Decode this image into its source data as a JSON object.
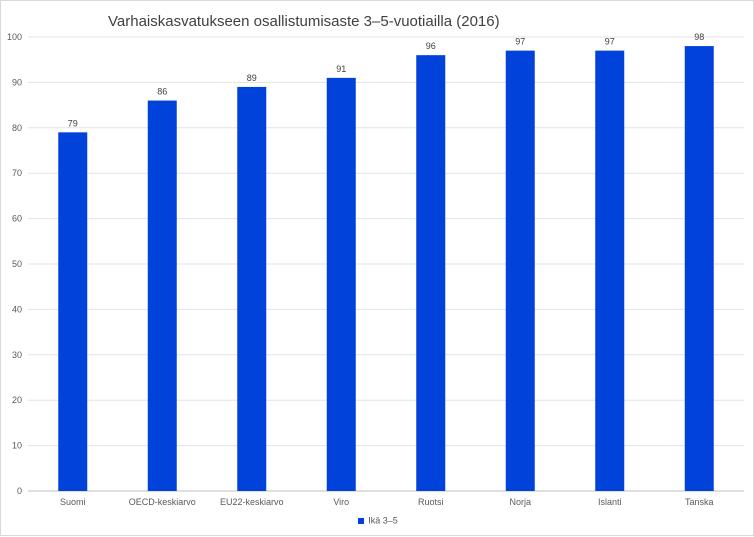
{
  "chart_data": {
    "type": "bar",
    "title": "Varhaiskasvatukseen osallistumisaste 3–5-vuotiailla (2016)",
    "categories": [
      "Suomi",
      "OECD-keskiarvo",
      "EU22-keskiarvo",
      "Viro",
      "Ruotsi",
      "Norja",
      "Islanti",
      "Tanska"
    ],
    "series": [
      {
        "name": "Ikä 3–5",
        "values": [
          79,
          86,
          89,
          91,
          96,
          97,
          97,
          98
        ],
        "color": "#0042da"
      }
    ],
    "ylim": [
      0,
      100
    ],
    "yticks": [
      0,
      10,
      20,
      30,
      40,
      50,
      60,
      70,
      80,
      90,
      100
    ],
    "grid": true,
    "legend_position": "bottom",
    "data_labels": true
  }
}
